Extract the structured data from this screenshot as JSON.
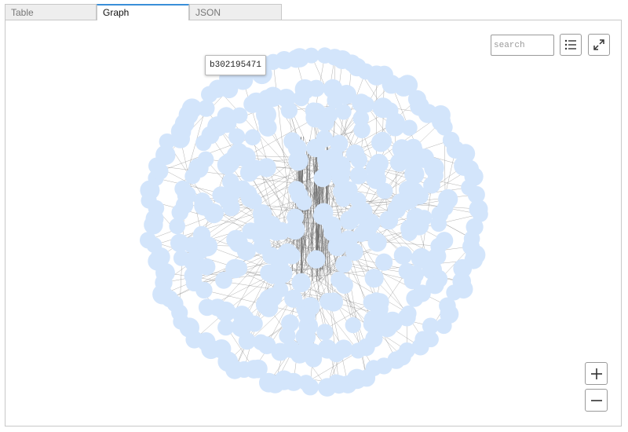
{
  "tabs": [
    {
      "label": "Table",
      "active": false
    },
    {
      "label": "Graph",
      "active": true
    },
    {
      "label": "JSON",
      "active": false
    }
  ],
  "search": {
    "placeholder": "search",
    "value": ""
  },
  "tooltip": {
    "text": "b302195471"
  },
  "icons": {
    "list": "list-icon",
    "expand": "expand-icon",
    "zoom_in": "plus-icon",
    "zoom_out": "minus-icon"
  },
  "graph": {
    "node_color": "#d3e5fb",
    "edge_color": "#8a8a8a",
    "accent_color": "#3a8fd8"
  }
}
